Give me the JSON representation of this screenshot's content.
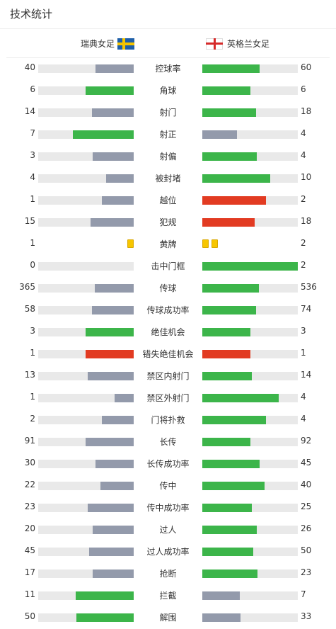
{
  "title": "技术统计",
  "home_team": "瑞典女足",
  "away_team": "英格兰女足",
  "colors": {
    "green": "#3cb54a",
    "gray": "#939aab",
    "red": "#e23b22",
    "track": "#e9e9e9",
    "yellow": "#f7c600"
  },
  "rows": [
    {
      "label": "控球率",
      "home": "40",
      "away": "60",
      "home_frac": 0.4,
      "away_frac": 0.6,
      "home_color": "gray",
      "away_color": "green"
    },
    {
      "label": "角球",
      "home": "6",
      "away": "6",
      "home_frac": 0.5,
      "away_frac": 0.5,
      "home_color": "green",
      "away_color": "green"
    },
    {
      "label": "射门",
      "home": "14",
      "away": "18",
      "home_frac": 0.44,
      "away_frac": 0.56,
      "home_color": "gray",
      "away_color": "green"
    },
    {
      "label": "射正",
      "home": "7",
      "away": "4",
      "home_frac": 0.64,
      "away_frac": 0.36,
      "home_color": "green",
      "away_color": "gray"
    },
    {
      "label": "射偏",
      "home": "3",
      "away": "4",
      "home_frac": 0.43,
      "away_frac": 0.57,
      "home_color": "gray",
      "away_color": "green"
    },
    {
      "label": "被封堵",
      "home": "4",
      "away": "10",
      "home_frac": 0.29,
      "away_frac": 0.71,
      "home_color": "gray",
      "away_color": "green"
    },
    {
      "label": "越位",
      "home": "1",
      "away": "2",
      "home_frac": 0.33,
      "away_frac": 0.67,
      "home_color": "gray",
      "away_color": "red"
    },
    {
      "label": "犯规",
      "home": "15",
      "away": "18",
      "home_frac": 0.45,
      "away_frac": 0.55,
      "home_color": "gray",
      "away_color": "red"
    },
    {
      "label": "黄牌",
      "home": "1",
      "away": "2",
      "home_cards": 1,
      "away_cards": 2
    },
    {
      "label": "击中门框",
      "home": "0",
      "away": "2",
      "home_frac": 0.0,
      "away_frac": 1.0,
      "home_color": "gray",
      "away_color": "green"
    },
    {
      "label": "传球",
      "home": "365",
      "away": "536",
      "home_frac": 0.41,
      "away_frac": 0.59,
      "home_color": "gray",
      "away_color": "green"
    },
    {
      "label": "传球成功率",
      "home": "58",
      "away": "74",
      "home_frac": 0.44,
      "away_frac": 0.56,
      "home_color": "gray",
      "away_color": "green"
    },
    {
      "label": "绝佳机会",
      "home": "3",
      "away": "3",
      "home_frac": 0.5,
      "away_frac": 0.5,
      "home_color": "green",
      "away_color": "green"
    },
    {
      "label": "错失绝佳机会",
      "home": "1",
      "away": "1",
      "home_frac": 0.5,
      "away_frac": 0.5,
      "home_color": "red",
      "away_color": "red"
    },
    {
      "label": "禁区内射门",
      "home": "13",
      "away": "14",
      "home_frac": 0.48,
      "away_frac": 0.52,
      "home_color": "gray",
      "away_color": "green"
    },
    {
      "label": "禁区外射门",
      "home": "1",
      "away": "4",
      "home_frac": 0.2,
      "away_frac": 0.8,
      "home_color": "gray",
      "away_color": "green"
    },
    {
      "label": "门将扑救",
      "home": "2",
      "away": "4",
      "home_frac": 0.33,
      "away_frac": 0.67,
      "home_color": "gray",
      "away_color": "green"
    },
    {
      "label": "长传",
      "home": "91",
      "away": "92",
      "home_frac": 0.5,
      "away_frac": 0.5,
      "home_color": "gray",
      "away_color": "green"
    },
    {
      "label": "长传成功率",
      "home": "30",
      "away": "45",
      "home_frac": 0.4,
      "away_frac": 0.6,
      "home_color": "gray",
      "away_color": "green"
    },
    {
      "label": "传中",
      "home": "22",
      "away": "40",
      "home_frac": 0.35,
      "away_frac": 0.65,
      "home_color": "gray",
      "away_color": "green"
    },
    {
      "label": "传中成功率",
      "home": "23",
      "away": "25",
      "home_frac": 0.48,
      "away_frac": 0.52,
      "home_color": "gray",
      "away_color": "green"
    },
    {
      "label": "过人",
      "home": "20",
      "away": "26",
      "home_frac": 0.43,
      "away_frac": 0.57,
      "home_color": "gray",
      "away_color": "green"
    },
    {
      "label": "过人成功率",
      "home": "45",
      "away": "50",
      "home_frac": 0.47,
      "away_frac": 0.53,
      "home_color": "gray",
      "away_color": "green"
    },
    {
      "label": "抢断",
      "home": "17",
      "away": "23",
      "home_frac": 0.43,
      "away_frac": 0.58,
      "home_color": "gray",
      "away_color": "green"
    },
    {
      "label": "拦截",
      "home": "11",
      "away": "7",
      "home_frac": 0.61,
      "away_frac": 0.39,
      "home_color": "green",
      "away_color": "gray"
    },
    {
      "label": "解围",
      "home": "50",
      "away": "33",
      "home_frac": 0.6,
      "away_frac": 0.4,
      "home_color": "green",
      "away_color": "gray"
    }
  ]
}
